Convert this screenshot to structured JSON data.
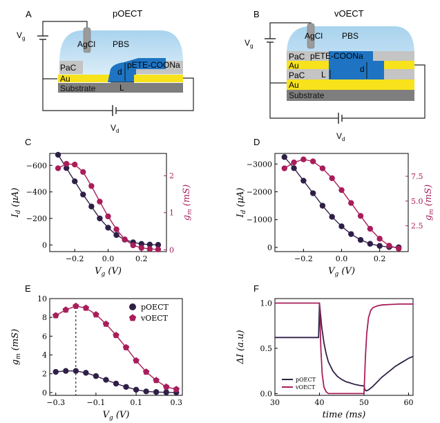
{
  "colors": {
    "p": "#2f1f47",
    "v": "#a81d5a",
    "pbs_top": "#a9d3ee",
    "pbs_bottom": "#d8ecf8",
    "gold": "#f7e21c",
    "pac": "#c4c4c4",
    "substrate": "#7e7e7e",
    "polymer": "#1e74c2",
    "agcl": "#9b9b9b"
  },
  "panels": {
    "A": {
      "letter": "A",
      "title": "pOECT",
      "labels": {
        "agcl": "AgCl",
        "pbs": "PBS",
        "pac": "PaC",
        "au": "Au",
        "substrate": "Substrate",
        "polymer": "pETE-COONa",
        "d": "d",
        "L": "L",
        "vg": "V",
        "vg_sub": "g",
        "vd": "V",
        "vd_sub": "d"
      }
    },
    "B": {
      "letter": "B",
      "title": "vOECT",
      "labels": {
        "agcl": "AgCl",
        "pbs": "PBS",
        "pac_top": "PaC",
        "au_top": "Au",
        "pac_mid": "PaC",
        "au_bottom": "Au",
        "substrate": "Substrate",
        "polymer": "pETE-COONa",
        "d": "d",
        "L": "L",
        "vg": "V",
        "vg_sub": "g",
        "vd": "V",
        "vd_sub": "d"
      }
    }
  },
  "chart_data": [
    {
      "id": "C",
      "letter": "C",
      "type": "line",
      "xlabel": "V_g (V)",
      "ylabel": "I_d (μA)",
      "y2label": "g_m (mS)",
      "xlim": [
        -0.35,
        0.35
      ],
      "ylim": [
        -690,
        50
      ],
      "y2lim": [
        -0.05,
        2.6
      ],
      "y_inverted": true,
      "xticks": [
        {
          "v": -0.2,
          "t": "−0.2"
        },
        {
          "v": 0.0,
          "t": "0.0"
        },
        {
          "v": 0.2,
          "t": "0.2"
        }
      ],
      "yticks": [
        {
          "v": -600,
          "t": "−600"
        },
        {
          "v": -400,
          "t": "−400"
        },
        {
          "v": -200,
          "t": "−200"
        },
        {
          "v": 0,
          "t": "0"
        }
      ],
      "y2ticks": [
        {
          "v": 0,
          "t": "0"
        },
        {
          "v": 1,
          "t": "1"
        },
        {
          "v": 2,
          "t": "2"
        }
      ],
      "series": [
        {
          "axis": "y",
          "color": "p",
          "x": [
            -0.3,
            -0.25,
            -0.2,
            -0.15,
            -0.1,
            -0.05,
            0,
            0.05,
            0.1,
            0.15,
            0.2,
            0.25,
            0.3
          ],
          "y": [
            -680,
            -580,
            -480,
            -380,
            -290,
            -200,
            -130,
            -75,
            -40,
            -20,
            -8,
            -3,
            -1
          ]
        },
        {
          "axis": "y2",
          "color": "v",
          "x": [
            -0.3,
            -0.25,
            -0.2,
            -0.15,
            -0.1,
            -0.05,
            0,
            0.05,
            0.1,
            0.15,
            0.2,
            0.25,
            0.3
          ],
          "y": [
            2.2,
            2.32,
            2.3,
            2.1,
            1.72,
            1.3,
            0.9,
            0.55,
            0.28,
            0.12,
            0.05,
            0.02,
            0.01
          ]
        }
      ]
    },
    {
      "id": "D",
      "letter": "D",
      "type": "line",
      "xlabel": "V_g (V)",
      "ylabel": "I_d (μA)",
      "y2label": "g_m (mS)",
      "xlim": [
        -0.35,
        0.35
      ],
      "ylim": [
        -3380,
        150
      ],
      "y2lim": [
        -0.1,
        9.8
      ],
      "y_inverted": true,
      "xticks": [
        {
          "v": -0.2,
          "t": "−0.2"
        },
        {
          "v": 0.0,
          "t": "0.0"
        },
        {
          "v": 0.2,
          "t": "0.2"
        }
      ],
      "yticks": [
        {
          "v": -3000,
          "t": "−3000"
        },
        {
          "v": -2000,
          "t": "−2000"
        },
        {
          "v": -1000,
          "t": "−1000"
        },
        {
          "v": 0,
          "t": "0"
        }
      ],
      "y2ticks": [
        {
          "v": 2.5,
          "t": "2.5"
        },
        {
          "v": 5.0,
          "t": "5.0"
        },
        {
          "v": 7.5,
          "t": "7.5"
        }
      ],
      "series": [
        {
          "axis": "y",
          "color": "p",
          "x": [
            -0.3,
            -0.25,
            -0.2,
            -0.15,
            -0.1,
            -0.05,
            0,
            0.05,
            0.1,
            0.15,
            0.2,
            0.25,
            0.3
          ],
          "y": [
            -3250,
            -2850,
            -2400,
            -1950,
            -1500,
            -1100,
            -760,
            -480,
            -270,
            -130,
            -55,
            -15,
            -5
          ]
        },
        {
          "axis": "y2",
          "color": "v",
          "x": [
            -0.3,
            -0.25,
            -0.2,
            -0.15,
            -0.1,
            -0.05,
            0,
            0.05,
            0.1,
            0.15,
            0.2,
            0.25,
            0.3
          ],
          "y": [
            8.3,
            8.9,
            9.2,
            9.0,
            8.3,
            7.3,
            6.1,
            4.8,
            3.5,
            2.2,
            1.2,
            0.5,
            0.2
          ]
        }
      ]
    },
    {
      "id": "E",
      "letter": "E",
      "type": "line",
      "xlabel": "V_g (V)",
      "ylabel": "g_m (mS)",
      "xlim": [
        -0.33,
        0.33
      ],
      "ylim": [
        -0.3,
        10
      ],
      "xticks": [
        {
          "v": -0.3,
          "t": "−0.3"
        },
        {
          "v": -0.1,
          "t": "−0.1"
        },
        {
          "v": 0.1,
          "t": "0.1"
        },
        {
          "v": 0.3,
          "t": "0.3"
        }
      ],
      "yticks": [
        {
          "v": 0,
          "t": "0"
        },
        {
          "v": 2,
          "t": "2"
        },
        {
          "v": 4,
          "t": "4"
        },
        {
          "v": 6,
          "t": "6"
        },
        {
          "v": 8,
          "t": "8"
        },
        {
          "v": 10,
          "t": "10"
        }
      ],
      "vline": -0.2,
      "legend": [
        {
          "name": "pOECT",
          "color": "p",
          "marker": "circle"
        },
        {
          "name": "vOECT",
          "color": "v",
          "marker": "pentagon"
        }
      ],
      "series": [
        {
          "name": "pOECT",
          "color": "p",
          "marker": "circle",
          "x": [
            -0.3,
            -0.25,
            -0.2,
            -0.15,
            -0.1,
            -0.05,
            0,
            0.05,
            0.1,
            0.15,
            0.2,
            0.25,
            0.3
          ],
          "y": [
            2.2,
            2.3,
            2.3,
            2.1,
            1.75,
            1.35,
            0.95,
            0.6,
            0.3,
            0.12,
            0.05,
            0.02,
            0.01
          ]
        },
        {
          "name": "vOECT",
          "color": "v",
          "marker": "pentagon",
          "x": [
            -0.3,
            -0.25,
            -0.2,
            -0.15,
            -0.1,
            -0.05,
            0,
            0.05,
            0.1,
            0.15,
            0.2,
            0.25,
            0.3
          ],
          "y": [
            8.2,
            8.8,
            9.2,
            9.0,
            8.3,
            7.3,
            6.1,
            4.8,
            3.4,
            2.2,
            1.3,
            0.6,
            0.35
          ]
        }
      ]
    },
    {
      "id": "F",
      "letter": "F",
      "type": "line",
      "xlabel": "time (ms)",
      "ylabel": "ΔI (a.u)",
      "xlim": [
        30,
        61
      ],
      "ylim": [
        -0.02,
        1.05
      ],
      "xticks": [
        {
          "v": 30,
          "t": "30"
        },
        {
          "v": 40,
          "t": "40"
        },
        {
          "v": 50,
          "t": "50"
        },
        {
          "v": 60,
          "t": "60"
        }
      ],
      "yticks": [
        {
          "v": 0.0,
          "t": "0.0"
        },
        {
          "v": 0.5,
          "t": "0.5"
        },
        {
          "v": 1.0,
          "t": "1.0"
        }
      ],
      "legend": [
        {
          "name": "pOECT",
          "color": "p"
        },
        {
          "name": "vOECT",
          "color": "v"
        }
      ],
      "series": [
        {
          "name": "pOECT",
          "color": "p",
          "x": [
            30,
            32,
            34,
            36,
            38,
            39.8,
            40,
            40.5,
            41,
            41.5,
            42,
            43,
            44,
            45,
            46,
            47,
            48,
            49,
            49.9,
            50,
            50.2,
            50.5,
            51,
            52,
            53,
            54,
            55,
            56,
            57,
            58,
            59,
            60,
            61
          ],
          "y": [
            0.62,
            0.62,
            0.62,
            0.62,
            0.62,
            0.62,
            1.0,
            0.74,
            0.56,
            0.44,
            0.35,
            0.25,
            0.19,
            0.155,
            0.13,
            0.115,
            0.1,
            0.09,
            0.085,
            0.085,
            0.04,
            0.03,
            0.04,
            0.08,
            0.13,
            0.18,
            0.22,
            0.26,
            0.3,
            0.33,
            0.36,
            0.39,
            0.41
          ]
        },
        {
          "name": "vOECT",
          "color": "v",
          "x": [
            30,
            32,
            34,
            36,
            38,
            39.9,
            40,
            40.3,
            40.6,
            41,
            41.5,
            42,
            44,
            46,
            48,
            49.9,
            50,
            50.3,
            50.6,
            51,
            51.5,
            52,
            53,
            54,
            56,
            58,
            60,
            61
          ],
          "y": [
            1.0,
            1.0,
            1.0,
            1.0,
            1.0,
            1.0,
            1.0,
            0.5,
            0.22,
            0.07,
            0.02,
            0.0,
            0.0,
            0.0,
            0.0,
            0.0,
            0.0,
            0.4,
            0.66,
            0.84,
            0.92,
            0.95,
            0.97,
            0.98,
            0.985,
            0.99,
            0.99,
            0.99
          ]
        }
      ]
    }
  ]
}
